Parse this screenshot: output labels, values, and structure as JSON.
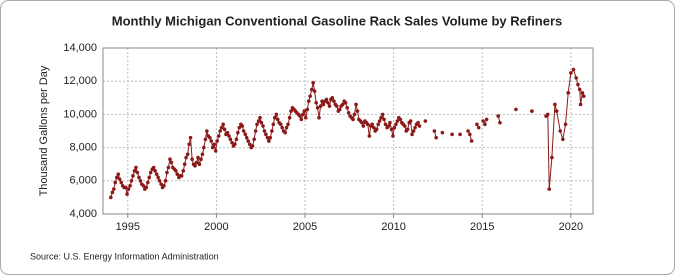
{
  "chart_data": {
    "type": "line",
    "title": "Monthly Michigan Conventional Gasoline Rack Sales Volume by Refiners",
    "y_label": "Thousand Gallons per Day",
    "source": "Source: U.S. Energy Information Administration",
    "xlim": [
      1993.6,
      2021.25
    ],
    "xticks": [
      1995,
      2000,
      2005,
      2010,
      2015,
      2020
    ],
    "ylim": [
      4000,
      14000
    ],
    "yticks": [
      {
        "value": 4000,
        "label": "4,000"
      },
      {
        "value": 6000,
        "label": "6,000"
      },
      {
        "value": 8000,
        "label": "8,000"
      },
      {
        "value": 10000,
        "label": "10,000"
      },
      {
        "value": 12000,
        "label": "12,000"
      },
      {
        "value": 14000,
        "label": "14,000"
      }
    ],
    "grid": true,
    "x": [
      1994.04,
      1994.13,
      1994.21,
      1994.29,
      1994.38,
      1994.46,
      1994.54,
      1994.63,
      1994.71,
      1994.79,
      1994.88,
      1994.96,
      1995.04,
      1995.13,
      1995.21,
      1995.29,
      1995.38,
      1995.46,
      1995.54,
      1995.63,
      1995.71,
      1995.79,
      1995.88,
      1995.96,
      1996.04,
      1996.13,
      1996.21,
      1996.29,
      1996.38,
      1996.46,
      1996.54,
      1996.63,
      1996.71,
      1996.79,
      1996.88,
      1996.96,
      1997.04,
      1997.13,
      1997.21,
      1997.29,
      1997.38,
      1997.46,
      1997.54,
      1997.63,
      1997.71,
      1997.79,
      1997.88,
      1997.96,
      1998.04,
      1998.13,
      1998.21,
      1998.29,
      1998.38,
      1998.46,
      1998.54,
      1998.63,
      1998.71,
      1998.79,
      1998.88,
      1998.96,
      1999.04,
      1999.13,
      1999.21,
      1999.29,
      1999.38,
      1999.46,
      1999.54,
      1999.63,
      1999.71,
      1999.79,
      1999.88,
      1999.96,
      2000.04,
      2000.13,
      2000.21,
      2000.29,
      2000.38,
      2000.46,
      2000.54,
      2000.63,
      2000.71,
      2000.79,
      2000.88,
      2000.96,
      2001.04,
      2001.13,
      2001.21,
      2001.29,
      2001.38,
      2001.46,
      2001.54,
      2001.63,
      2001.71,
      2001.79,
      2001.88,
      2001.96,
      2002.04,
      2002.13,
      2002.21,
      2002.29,
      2002.38,
      2002.46,
      2002.54,
      2002.63,
      2002.71,
      2002.79,
      2002.88,
      2002.96,
      2003.04,
      2003.13,
      2003.21,
      2003.29,
      2003.38,
      2003.46,
      2003.54,
      2003.63,
      2003.71,
      2003.79,
      2003.88,
      2003.96,
      2004.04,
      2004.13,
      2004.21,
      2004.29,
      2004.38,
      2004.46,
      2004.54,
      2004.63,
      2004.71,
      2004.79,
      2004.88,
      2004.96,
      2005.04,
      2005.13,
      2005.21,
      2005.29,
      2005.38,
      2005.46,
      2005.54,
      2005.63,
      2005.71,
      2005.79,
      2005.88,
      2005.96,
      2006.04,
      2006.13,
      2006.21,
      2006.29,
      2006.38,
      2006.46,
      2006.54,
      2006.63,
      2006.71,
      2006.79,
      2006.88,
      2006.96,
      2007.04,
      2007.13,
      2007.21,
      2007.29,
      2007.38,
      2007.46,
      2007.54,
      2007.63,
      2007.71,
      2007.79,
      2007.88,
      2007.96,
      2008.04,
      2008.13,
      2008.21,
      2008.29,
      2008.38,
      2008.46,
      2008.54,
      2008.63,
      2008.71,
      2008.79,
      2008.88,
      2008.96,
      2009.04,
      2009.13,
      2009.21,
      2009.29,
      2009.38,
      2009.46,
      2009.54,
      2009.63,
      2009.71,
      2009.79,
      2009.88,
      2009.96,
      2010.04,
      2010.13,
      2010.21,
      2010.29,
      2010.38,
      2010.46,
      2010.54,
      2010.63,
      2010.71,
      2010.79,
      2010.88,
      2010.96,
      2011.04,
      2011.13,
      2011.21,
      2011.29,
      2011.38,
      2011.46,
      2011.54,
      2011.79,
      2011.9,
      2012.3,
      2012.4,
      2012.5,
      2012.75,
      2012.85,
      2013.3,
      2013.4,
      2013.75,
      2013.85,
      2014.2,
      2014.3,
      2014.4,
      2014.5,
      2014.7,
      2014.8,
      2014.9,
      2015.05,
      2015.15,
      2015.25,
      2015.35,
      2015.9,
      2016.0,
      2016.1,
      2016.9,
      2017.0,
      2017.8,
      2017.9,
      2018.6,
      2018.7,
      2018.78,
      2018.93,
      2019.1,
      2019.2,
      2019.4,
      2019.55,
      2019.7,
      2019.85,
      2020.0,
      2020.15,
      2020.3,
      2020.4,
      2020.5,
      2020.55,
      2020.65,
      2020.73
    ],
    "series": [
      {
        "name": "Michigan Conventional Gasoline Rack Sales",
        "color": "#8b1a1a",
        "values": [
          5000,
          5300,
          5500,
          5900,
          6200,
          6400,
          6100,
          5900,
          5700,
          5600,
          5600,
          5200,
          5500,
          5700,
          6000,
          6300,
          6600,
          6800,
          6500,
          6200,
          6000,
          5800,
          5700,
          5500,
          5600,
          5900,
          6200,
          6500,
          6700,
          6800,
          6600,
          6400,
          6200,
          6000,
          5800,
          5600,
          5700,
          6000,
          6500,
          6800,
          7300,
          7100,
          6800,
          6700,
          6600,
          6400,
          6200,
          6300,
          6300,
          6600,
          7000,
          7400,
          7600,
          8200,
          8600,
          7300,
          7000,
          6900,
          7100,
          7400,
          7000,
          7300,
          7600,
          8000,
          8500,
          9000,
          8700,
          8600,
          8400,
          8000,
          8200,
          7800,
          8400,
          8700,
          9000,
          9200,
          9400,
          9100,
          8800,
          8900,
          8700,
          8500,
          8300,
          8100,
          8200,
          8500,
          8900,
          9200,
          9400,
          9300,
          9000,
          8800,
          8600,
          8400,
          8200,
          8000,
          8100,
          8500,
          9000,
          9400,
          9600,
          9800,
          9500,
          9300,
          9000,
          8800,
          8600,
          8400,
          8600,
          9000,
          9400,
          9800,
          10000,
          9700,
          9500,
          9400,
          9200,
          9000,
          8900,
          9200,
          9400,
          9800,
          10200,
          10400,
          10300,
          10200,
          10100,
          10000,
          9900,
          9700,
          10000,
          10200,
          9800,
          10300,
          10800,
          11100,
          11500,
          11900,
          11400,
          10700,
          10400,
          9800,
          10500,
          10800,
          10600,
          10800,
          10900,
          10700,
          10500,
          10900,
          11000,
          10800,
          10600,
          10500,
          10200,
          10300,
          10500,
          10600,
          10800,
          10700,
          10400,
          10100,
          9900,
          9800,
          9700,
          10000,
          10600,
          10200,
          9700,
          9600,
          9500,
          9300,
          9600,
          9500,
          9400,
          8700,
          9300,
          9400,
          9200,
          9000,
          9100,
          9400,
          9600,
          9800,
          10000,
          9700,
          9400,
          9200,
          9300,
          9500,
          9100,
          8700,
          9200,
          9400,
          9600,
          9800,
          9700,
          9500,
          9400,
          9300,
          9000,
          9100,
          9500,
          9600,
          8800,
          9000,
          9200,
          9400,
          9500,
          9300,
          null,
          9600,
          null,
          9000,
          8600,
          null,
          8900,
          null,
          8800,
          null,
          8800,
          null,
          9000,
          8800,
          8400,
          null,
          9400,
          9200,
          null,
          9600,
          9400,
          9700,
          null,
          9900,
          9500,
          null,
          10300,
          null,
          10200,
          null,
          9900,
          10000,
          5500,
          7400,
          10600,
          10200,
          9000,
          8500,
          9400,
          11300,
          12500,
          12700,
          12200,
          11800,
          11500,
          10600,
          11300,
          11100
        ]
      }
    ]
  }
}
